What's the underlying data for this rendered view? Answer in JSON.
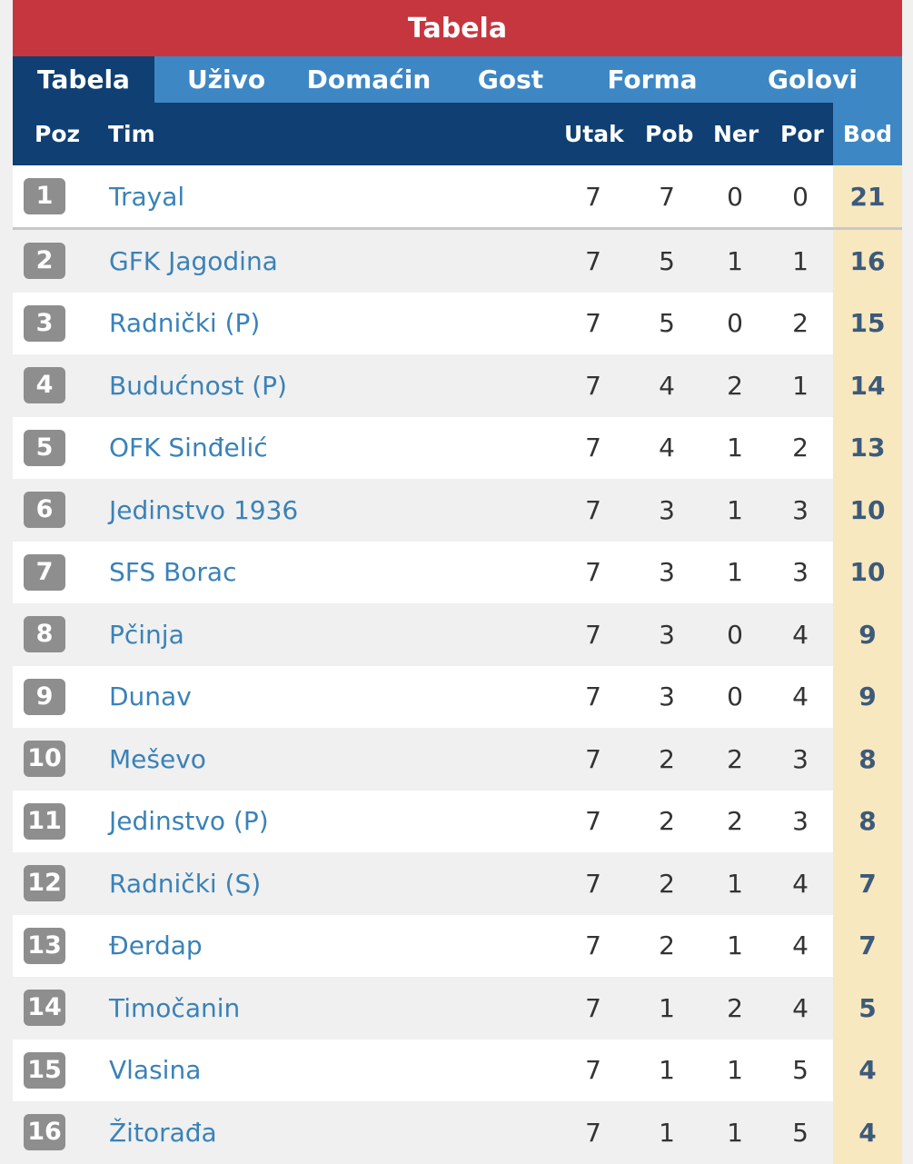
{
  "title": "Tabela",
  "tabs": [
    "Tabela",
    "Uživo",
    "Domaćin",
    "Gost",
    "Forma",
    "Golovi"
  ],
  "columns": {
    "poz": "Poz",
    "tim": "Tim",
    "utak": "Utak",
    "pob": "Pob",
    "ner": "Ner",
    "por": "Por",
    "bod": "Bod"
  },
  "rows": [
    {
      "poz": "1",
      "tim": "Trayal",
      "utak": "7",
      "pob": "7",
      "ner": "0",
      "por": "0",
      "bod": "21"
    },
    {
      "poz": "2",
      "tim": "GFK Jagodina",
      "utak": "7",
      "pob": "5",
      "ner": "1",
      "por": "1",
      "bod": "16"
    },
    {
      "poz": "3",
      "tim": "Radnički (P)",
      "utak": "7",
      "pob": "5",
      "ner": "0",
      "por": "2",
      "bod": "15"
    },
    {
      "poz": "4",
      "tim": "Budućnost (P)",
      "utak": "7",
      "pob": "4",
      "ner": "2",
      "por": "1",
      "bod": "14"
    },
    {
      "poz": "5",
      "tim": "OFK Sinđelić",
      "utak": "7",
      "pob": "4",
      "ner": "1",
      "por": "2",
      "bod": "13"
    },
    {
      "poz": "6",
      "tim": "Jedinstvo 1936",
      "utak": "7",
      "pob": "3",
      "ner": "1",
      "por": "3",
      "bod": "10"
    },
    {
      "poz": "7",
      "tim": "SFS Borac",
      "utak": "7",
      "pob": "3",
      "ner": "1",
      "por": "3",
      "bod": "10"
    },
    {
      "poz": "8",
      "tim": "Pčinja",
      "utak": "7",
      "pob": "3",
      "ner": "0",
      "por": "4",
      "bod": "9"
    },
    {
      "poz": "9",
      "tim": "Dunav",
      "utak": "7",
      "pob": "3",
      "ner": "0",
      "por": "4",
      "bod": "9"
    },
    {
      "poz": "10",
      "tim": "Meševo",
      "utak": "7",
      "pob": "2",
      "ner": "2",
      "por": "3",
      "bod": "8"
    },
    {
      "poz": "11",
      "tim": "Jedinstvo (P)",
      "utak": "7",
      "pob": "2",
      "ner": "2",
      "por": "3",
      "bod": "8"
    },
    {
      "poz": "12",
      "tim": "Radnički (S)",
      "utak": "7",
      "pob": "2",
      "ner": "1",
      "por": "4",
      "bod": "7"
    },
    {
      "poz": "13",
      "tim": "Đerdap",
      "utak": "7",
      "pob": "2",
      "ner": "1",
      "por": "4",
      "bod": "7"
    },
    {
      "poz": "14",
      "tim": "Timočanin",
      "utak": "7",
      "pob": "1",
      "ner": "2",
      "por": "4",
      "bod": "5"
    },
    {
      "poz": "15",
      "tim": "Vlasina",
      "utak": "7",
      "pob": "1",
      "ner": "1",
      "por": "5",
      "bod": "4"
    },
    {
      "poz": "16",
      "tim": "Žitorađa",
      "utak": "7",
      "pob": "1",
      "ner": "1",
      "por": "5",
      "bod": "4"
    }
  ]
}
